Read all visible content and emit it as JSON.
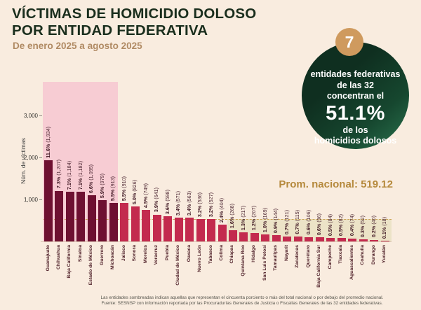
{
  "header": {
    "title_line1": "VÍCTIMAS DE HOMICIDIO DOLOSO",
    "title_line2": "POR ENTIDAD FEDERATIVA",
    "subtitle": "De enero 2025 a agosto 2025"
  },
  "highlight": {
    "badge": "7",
    "line1": "entidades federativas",
    "line2": "de las 32",
    "line3": "concentran el",
    "value": "51.1%",
    "line4": "de los",
    "line5": "homicidios dolosos"
  },
  "chart_data": {
    "type": "bar",
    "title": "Víctimas de homicidio doloso por entidad federativa, enero 2025 a agosto 2025",
    "xlabel": "",
    "ylabel": "Núm. de víctimas",
    "ylim": [
      0,
      3400
    ],
    "grid": false,
    "yticks": [
      {
        "label": "1,000",
        "value": 1000
      },
      {
        "label": "2,000",
        "value": 2000
      },
      {
        "label": "3,000",
        "value": 3000
      }
    ],
    "national_average": {
      "label": "Prom. nacional: 519.12",
      "value": 519.12
    },
    "shaded_top_group_count": 7,
    "bars": [
      {
        "state": "Guanajuato",
        "pct": "11.6%",
        "count": "1,934",
        "value": 1934
      },
      {
        "state": "Chihuahua",
        "pct": "7.3%",
        "count": "1,207",
        "value": 1207
      },
      {
        "state": "Baja California",
        "pct": "7.1%",
        "count": "1,184",
        "value": 1184
      },
      {
        "state": "Sinaloa",
        "pct": "7.1%",
        "count": "1,182",
        "value": 1182
      },
      {
        "state": "Estado de México",
        "pct": "6.6%",
        "count": "1,095",
        "value": 1095
      },
      {
        "state": "Guerrero",
        "pct": "5.9%",
        "count": "979",
        "value": 979
      },
      {
        "state": "Michoacán",
        "pct": "5.5%",
        "count": "913",
        "value": 913
      },
      {
        "state": "Jalisco",
        "pct": "5.5%",
        "count": "910",
        "value": 910
      },
      {
        "state": "Sonora",
        "pct": "5.0%",
        "count": "826",
        "value": 826
      },
      {
        "state": "Morelos",
        "pct": "4.5%",
        "count": "749",
        "value": 749
      },
      {
        "state": "Veracruz",
        "pct": "3.9%",
        "count": "641",
        "value": 641
      },
      {
        "state": "Puebla",
        "pct": "3.6%",
        "count": "598",
        "value": 598
      },
      {
        "state": "Ciudad de México",
        "pct": "3.4%",
        "count": "571",
        "value": 571
      },
      {
        "state": "Oaxaca",
        "pct": "3.4%",
        "count": "563",
        "value": 563
      },
      {
        "state": "Nuevo León",
        "pct": "3.2%",
        "count": "536",
        "value": 536
      },
      {
        "state": "Tabasco",
        "pct": "3.2%",
        "count": "527",
        "value": 527
      },
      {
        "state": "Colima",
        "pct": "2.4%",
        "count": "404",
        "value": 404
      },
      {
        "state": "Chiapas",
        "pct": "1.6%",
        "count": "268",
        "value": 268
      },
      {
        "state": "Quintana Roo",
        "pct": "1.3%",
        "count": "217",
        "value": 217
      },
      {
        "state": "Hidalgo",
        "pct": "1.2%",
        "count": "207",
        "value": 207
      },
      {
        "state": "San Luis Potosí",
        "pct": "1.0%",
        "count": "169",
        "value": 169
      },
      {
        "state": "Tamaulipas",
        "pct": "0.9%",
        "count": "144",
        "value": 144
      },
      {
        "state": "Nayarit",
        "pct": "0.7%",
        "count": "121",
        "value": 121
      },
      {
        "state": "Zacatecas",
        "pct": "0.7%",
        "count": "115",
        "value": 115
      },
      {
        "state": "Querétaro",
        "pct": "0.6%",
        "count": "106",
        "value": 106
      },
      {
        "state": "Baja California Sur",
        "pct": "0.6%",
        "count": "96",
        "value": 96
      },
      {
        "state": "Campeche",
        "pct": "0.5%",
        "count": "84",
        "value": 84
      },
      {
        "state": "Tlaxcala",
        "pct": "0.5%",
        "count": "82",
        "value": 82
      },
      {
        "state": "Aguascalientes",
        "pct": "0.4%",
        "count": "74",
        "value": 74
      },
      {
        "state": "Coahuila",
        "pct": "0.3%",
        "count": "52",
        "value": 52
      },
      {
        "state": "Durango",
        "pct": "0.2%",
        "count": "40",
        "value": 40
      },
      {
        "state": "Yucatán",
        "pct": "0.1%",
        "count": "18",
        "value": 18
      }
    ]
  },
  "footer": {
    "note": "Las entidades sombreadas indican aquellas que representan el cincuenta porciento o más del total nacional o por debajo del promedio nacional.",
    "source": "Fuente: SESNSP con información reportada por las Procuradurías Generales de Justicia o Fiscalías Generales de las 32 entidades federativas."
  },
  "colors": {
    "background": "#f9ecdf",
    "pink_region": "#f7ccd3",
    "beige_region": "#ece3c7",
    "bar_dark": "#6e1031",
    "bar_light": "#c32a4e",
    "title_green": "#1a2e1d",
    "subtitle_tan": "#b08a63",
    "gold_accent": "#b5893c",
    "circle_green_dark": "#0f2f20",
    "circle_green_light": "#2e7a54",
    "badge_tan": "#cf9a5e"
  }
}
